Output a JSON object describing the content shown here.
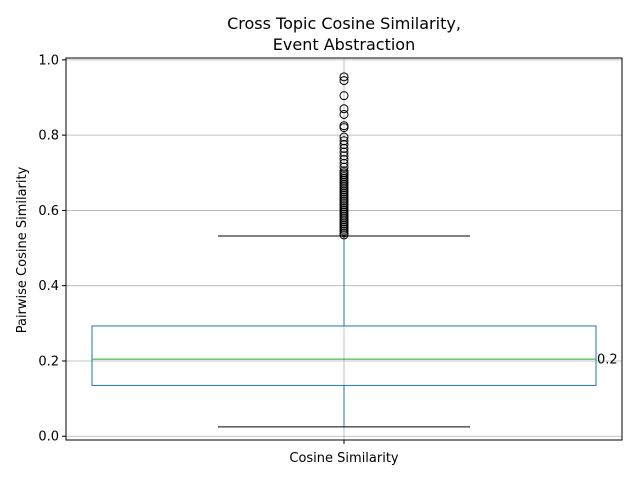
{
  "chart_data": {
    "type": "box",
    "title_lines": [
      "Cross Topic Cosine Similarity,",
      "Event Abstraction"
    ],
    "xlabel": "",
    "ylabel": "Pairwise Cosine Similarity",
    "categories": [
      "Cosine Similarity"
    ],
    "ylim": [
      -0.01,
      1.005
    ],
    "yticks": [
      0.0,
      0.2,
      0.4,
      0.6,
      0.8,
      1.0
    ],
    "ytick_labels": [
      "0.0",
      "0.2",
      "0.4",
      "0.6",
      "0.8",
      "1.0"
    ],
    "grid": true,
    "box": {
      "whisker_low": 0.025,
      "q1": 0.135,
      "median": 0.205,
      "q3": 0.293,
      "whisker_high": 0.532
    },
    "median_label": "0.2",
    "outliers": [
      0.535,
      0.54,
      0.545,
      0.55,
      0.555,
      0.56,
      0.565,
      0.57,
      0.575,
      0.58,
      0.585,
      0.59,
      0.595,
      0.6,
      0.605,
      0.61,
      0.615,
      0.62,
      0.625,
      0.63,
      0.635,
      0.64,
      0.645,
      0.65,
      0.655,
      0.66,
      0.665,
      0.67,
      0.675,
      0.68,
      0.685,
      0.69,
      0.695,
      0.7,
      0.705,
      0.715,
      0.725,
      0.735,
      0.745,
      0.755,
      0.765,
      0.775,
      0.785,
      0.795,
      0.82,
      0.825,
      0.855,
      0.87,
      0.905,
      0.945,
      0.955
    ],
    "colors": {
      "box": "#1f77b4",
      "median": "#2ca02c",
      "whisker_cap": "#000000",
      "grid": "#b0b0b0"
    }
  }
}
